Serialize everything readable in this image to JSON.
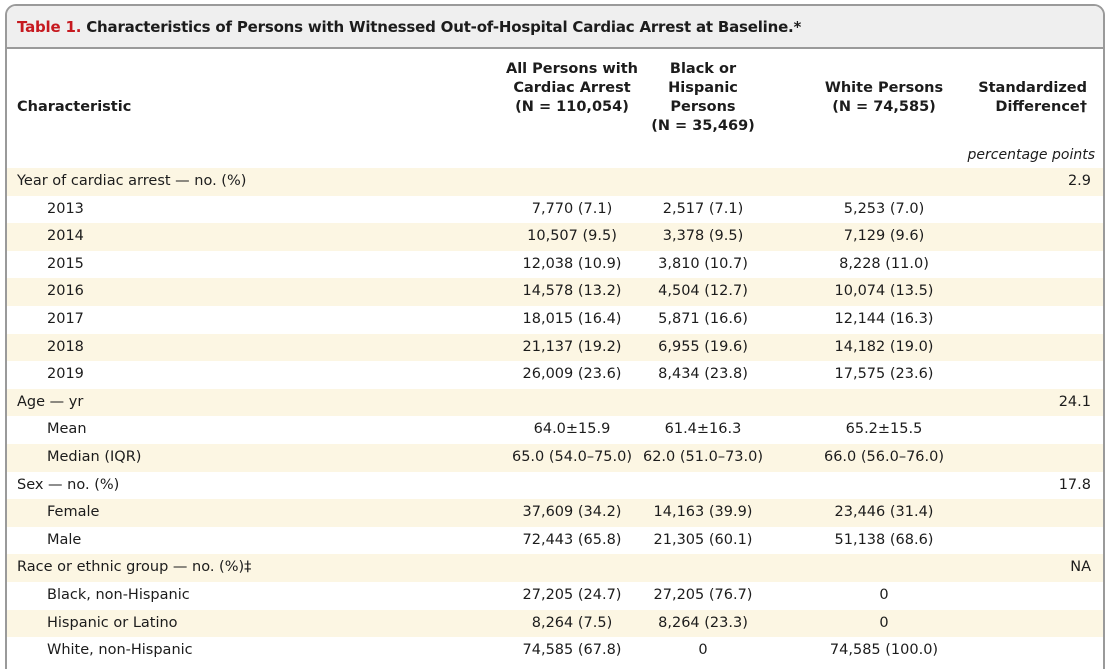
{
  "table": {
    "label": "Table 1.",
    "title": "Characteristics of Persons with Witnessed Out-of-Hospital Cardiac Arrest at Baseline.*",
    "headers": {
      "characteristic": "Characteristic",
      "all": [
        "All Persons with",
        "Cardiac Arrest",
        "(N = 110,054)"
      ],
      "black_hispanic": [
        "Black or Hispanic",
        "Persons",
        "(N = 35,469)"
      ],
      "white": [
        "White Persons",
        "(N = 74,585)"
      ],
      "std_diff": [
        "Standardized",
        "Difference†"
      ]
    },
    "units_note": "percentage points",
    "rows": [
      {
        "label": "Year of cardiac arrest — no. (%)",
        "indent": false,
        "all": "",
        "bh": "",
        "white": "",
        "sd": "2.9"
      },
      {
        "label": "2013",
        "indent": true,
        "all": "7,770 (7.1)",
        "bh": "2,517 (7.1)",
        "white": "5,253 (7.0)",
        "sd": ""
      },
      {
        "label": "2014",
        "indent": true,
        "all": "10,507 (9.5)",
        "bh": "3,378 (9.5)",
        "white": "7,129 (9.6)",
        "sd": ""
      },
      {
        "label": "2015",
        "indent": true,
        "all": "12,038 (10.9)",
        "bh": "3,810 (10.7)",
        "white": "8,228 (11.0)",
        "sd": ""
      },
      {
        "label": "2016",
        "indent": true,
        "all": "14,578 (13.2)",
        "bh": "4,504 (12.7)",
        "white": "10,074 (13.5)",
        "sd": ""
      },
      {
        "label": "2017",
        "indent": true,
        "all": "18,015 (16.4)",
        "bh": "5,871 (16.6)",
        "white": "12,144 (16.3)",
        "sd": ""
      },
      {
        "label": "2018",
        "indent": true,
        "all": "21,137 (19.2)",
        "bh": "6,955 (19.6)",
        "white": "14,182 (19.0)",
        "sd": ""
      },
      {
        "label": "2019",
        "indent": true,
        "all": "26,009 (23.6)",
        "bh": "8,434 (23.8)",
        "white": "17,575 (23.6)",
        "sd": ""
      },
      {
        "label": "Age — yr",
        "indent": false,
        "all": "",
        "bh": "",
        "white": "",
        "sd": "24.1"
      },
      {
        "label": "Mean",
        "indent": true,
        "all": "64.0±15.9",
        "bh": "61.4±16.3",
        "white": "65.2±15.5",
        "sd": ""
      },
      {
        "label": "Median (IQR)",
        "indent": true,
        "all": "65.0 (54.0–75.0)",
        "bh": "62.0 (51.0–73.0)",
        "white": "66.0 (56.0–76.0)",
        "sd": ""
      },
      {
        "label": "Sex — no. (%)",
        "indent": false,
        "all": "",
        "bh": "",
        "white": "",
        "sd": "17.8"
      },
      {
        "label": "Female",
        "indent": true,
        "all": "37,609 (34.2)",
        "bh": "14,163 (39.9)",
        "white": "23,446 (31.4)",
        "sd": ""
      },
      {
        "label": "Male",
        "indent": true,
        "all": "72,443 (65.8)",
        "bh": "21,305 (60.1)",
        "white": "51,138 (68.6)",
        "sd": ""
      },
      {
        "label": "Race or ethnic group — no. (%)‡",
        "indent": false,
        "all": "",
        "bh": "",
        "white": "",
        "sd": "NA"
      },
      {
        "label": "Black, non-Hispanic",
        "indent": true,
        "all": "27,205 (24.7)",
        "bh": "27,205 (76.7)",
        "white": "0",
        "sd": ""
      },
      {
        "label": "Hispanic or Latino",
        "indent": true,
        "all": "8,264 (7.5)",
        "bh": "8,264 (23.3)",
        "white": "0",
        "sd": ""
      },
      {
        "label": "White, non-Hispanic",
        "indent": true,
        "all": "74,585 (67.8)",
        "bh": "0",
        "white": "74,585 (100.0)",
        "sd": ""
      }
    ]
  },
  "colors": {
    "label_red": "#c6191f",
    "stripe": "#fcf6e3",
    "title_bg": "#efefef",
    "border": "#9a9a9a"
  }
}
